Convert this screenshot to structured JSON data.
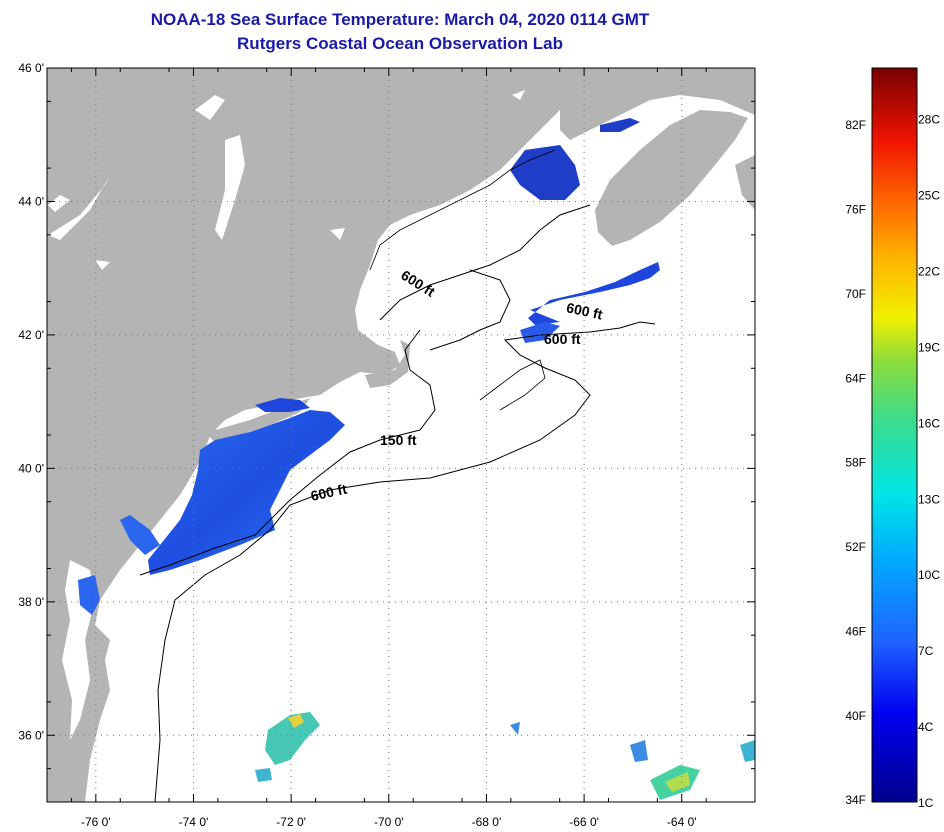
{
  "header": {
    "title_line1": "NOAA-18 Sea Surface Temperature:  March 04, 2020 0114 GMT",
    "title_line2": "Rutgers Coastal Ocean Observation Lab"
  },
  "map": {
    "lat_labels": [
      "46 0'",
      "44 0'",
      "42 0'",
      "40 0'",
      "38 0'",
      "36 0'"
    ],
    "lat_values": [
      46,
      44,
      42,
      40,
      38,
      36
    ],
    "lon_labels": [
      "-76 0'",
      "-74 0'",
      "-72 0'",
      "-70 0'",
      "-68 0'",
      "-66 0'",
      "-64 0'"
    ],
    "lon_values": [
      -76,
      -74,
      -72,
      -70,
      -68,
      -66,
      -64
    ],
    "lon_range": [
      -77,
      -62.5
    ],
    "lat_range": [
      35,
      46
    ],
    "contour_labels": [
      "600 ft",
      "600 ft",
      "600 ft",
      "150 ft",
      "600 ft"
    ],
    "colors": {
      "land": "#b4b4b4",
      "ocean": "#ffffff",
      "cold_water": "#1e46dc"
    }
  },
  "colorbar": {
    "fahrenheit_labels": [
      "82F",
      "76F",
      "70F",
      "64F",
      "58F",
      "52F",
      "46F",
      "40F",
      "34F"
    ],
    "celsius_labels": [
      "28C",
      "25C",
      "22C",
      "19C",
      "16C",
      "13C",
      "10C",
      "7C",
      "4C",
      "1C"
    ],
    "range_c": [
      1,
      30
    ]
  }
}
